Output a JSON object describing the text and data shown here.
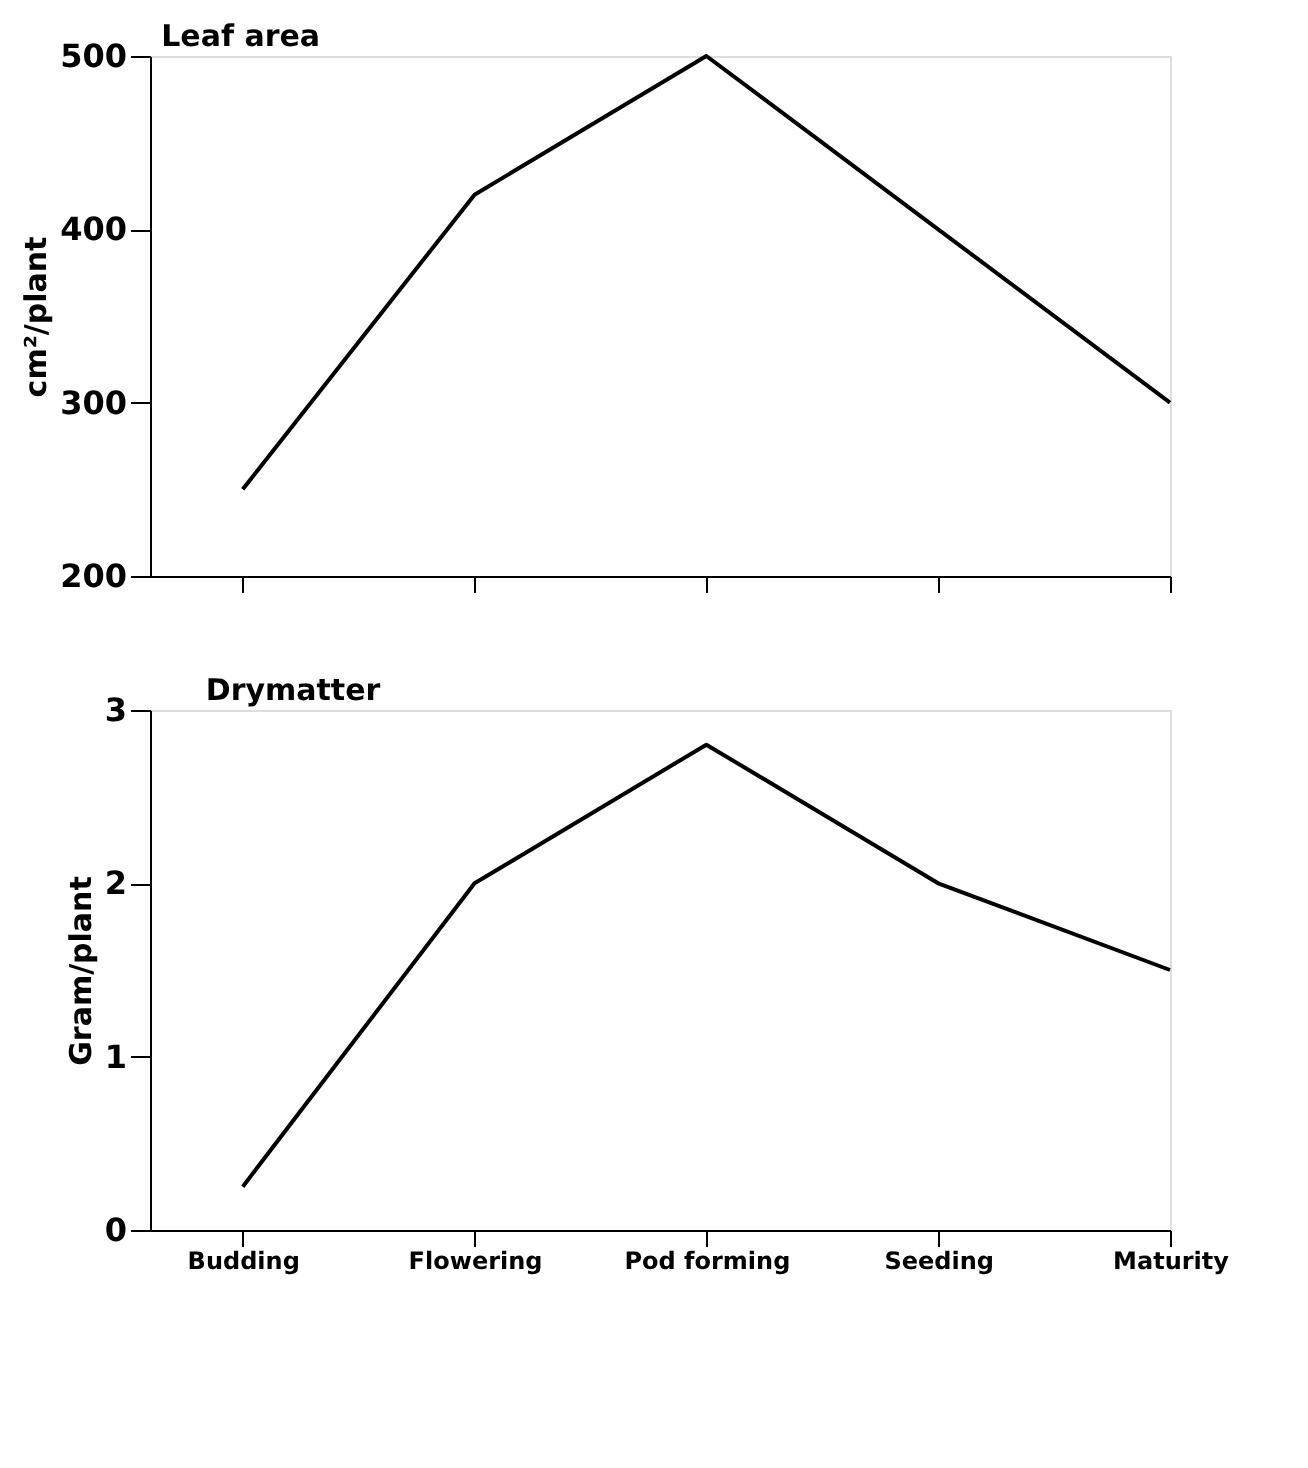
{
  "chart_data": [
    {
      "type": "line",
      "title": "Leaf area",
      "ylabel": "cm²/plant",
      "categories": [
        null,
        null,
        null,
        null,
        null
      ],
      "series": [
        {
          "color": "#000000",
          "values": [
            250,
            420,
            500,
            400,
            300
          ]
        }
      ],
      "ylim": [
        200,
        500
      ],
      "yticks": [
        200,
        300,
        400,
        500
      ],
      "tick_labels": "y",
      "grid": false
    },
    {
      "type": "line",
      "title": "Drymatter",
      "ylabel": "Gram/plant",
      "categories": [
        "Budding",
        "Flowering",
        "Pod forming",
        "Seeding",
        "Maturity"
      ],
      "series": [
        {
          "color": "#000000",
          "values": [
            0.25,
            2,
            2.8,
            2,
            1.5
          ]
        }
      ],
      "ylim": [
        0,
        3
      ],
      "yticks": [
        0,
        1,
        2,
        3
      ],
      "grid": false
    }
  ]
}
